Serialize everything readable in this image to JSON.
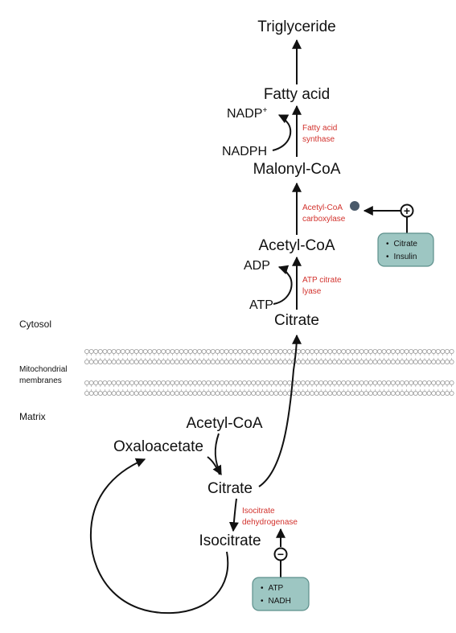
{
  "compartments": {
    "cytosol": "Cytosol",
    "membranes_line1": "Mitochondrial",
    "membranes_line2": "membranes",
    "matrix": "Matrix"
  },
  "metabolites": {
    "triglyceride": "Triglyceride",
    "fatty_acid": "Fatty acid",
    "nadp_plus": "NADP",
    "nadp_plus_sup": "+",
    "nadph": "NADPH",
    "malonyl_coa": "Malonyl-CoA",
    "acetyl_coa_cytosol": "Acetyl-CoA",
    "adp": "ADP",
    "atp": "ATP",
    "citrate_cytosol": "Citrate",
    "acetyl_coa_matrix": "Acetyl-CoA",
    "oxaloacetate": "Oxaloacetate",
    "citrate_matrix": "Citrate",
    "isocitrate": "Isocitrate"
  },
  "enzymes": {
    "fatty_acid_synthase": [
      "Fatty acid",
      "synthase"
    ],
    "acetyl_coa_carboxylase": [
      "Acetyl-CoA",
      "carboxylase"
    ],
    "atp_citrate_lyase": [
      "ATP citrate",
      "lyase"
    ],
    "isocitrate_dehydrogenase": [
      "Isocitrate",
      "dehydrogenase"
    ]
  },
  "regulators": {
    "activators": [
      "Citrate",
      "Insulin"
    ],
    "activator_sign": "+",
    "inhibitors": [
      "ATP",
      "NADH"
    ],
    "inhibitor_sign": "−",
    "bullet": "•"
  },
  "colors": {
    "enzyme_text": "#d2322d",
    "regulator_box": "#9dc6c2",
    "regulator_border": "#5c8f8b",
    "phospho_dot": "#4a5a6a"
  }
}
